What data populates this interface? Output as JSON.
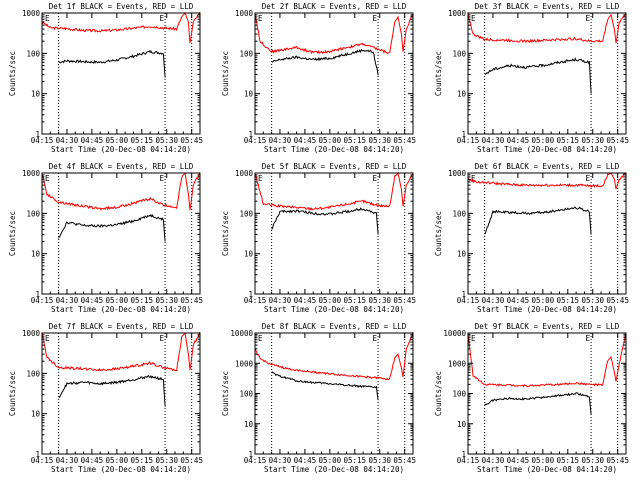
{
  "chart_data": {
    "type": "line",
    "layout": {
      "rows": 3,
      "cols": 3
    },
    "xlabel": "Start Time (20-Dec-08 04:14:20)",
    "ylabel": "Counts/sec",
    "x_ticks": [
      "04:15",
      "04:30",
      "04:45",
      "05:00",
      "05:15",
      "05:30",
      "05:45"
    ],
    "x_tick_minutes": [
      15,
      30,
      45,
      60,
      75,
      90,
      105
    ],
    "xlim_minutes": [
      15,
      110
    ],
    "y_scale": "log",
    "y_ticks": [
      "1",
      "10",
      "100",
      "1000"
    ],
    "y_ticks_wide": [
      "1",
      "10",
      "100",
      "1000",
      "10000"
    ],
    "marker_label": "E",
    "marker_lines_minutes": [
      25,
      89,
      105
    ],
    "series_colors": {
      "Events": "#000000",
      "LLD": "#ff0000"
    },
    "panels": [
      {
        "title": "Det 1f BLACK = Events, RED = LLD",
        "ylim": [
          1,
          1000
        ],
        "events": [
          [
            25,
            60
          ],
          [
            30,
            65
          ],
          [
            40,
            62
          ],
          [
            50,
            60
          ],
          [
            60,
            68
          ],
          [
            70,
            85
          ],
          [
            80,
            110
          ],
          [
            88,
            100
          ],
          [
            89,
            25
          ]
        ],
        "lld": [
          [
            15,
            600
          ],
          [
            20,
            430
          ],
          [
            30,
            410
          ],
          [
            40,
            370
          ],
          [
            50,
            360
          ],
          [
            60,
            380
          ],
          [
            70,
            420
          ],
          [
            80,
            470
          ],
          [
            88,
            430
          ],
          [
            96,
            400
          ],
          [
            99,
            800
          ],
          [
            101,
            1000
          ],
          [
            103,
            600
          ],
          [
            104,
            180
          ],
          [
            106,
            600
          ],
          [
            110,
            1000
          ]
        ]
      },
      {
        "title": "Det 2f BLACK = Events, RED = LLD",
        "ylim": [
          1,
          1000
        ],
        "events": [
          [
            25,
            60
          ],
          [
            30,
            70
          ],
          [
            40,
            80
          ],
          [
            50,
            70
          ],
          [
            60,
            75
          ],
          [
            70,
            95
          ],
          [
            80,
            120
          ],
          [
            86,
            110
          ],
          [
            89,
            30
          ]
        ],
        "lld": [
          [
            15,
            1000
          ],
          [
            18,
            200
          ],
          [
            25,
            110
          ],
          [
            40,
            140
          ],
          [
            50,
            105
          ],
          [
            60,
            110
          ],
          [
            70,
            140
          ],
          [
            80,
            170
          ],
          [
            88,
            130
          ],
          [
            96,
            100
          ],
          [
            99,
            600
          ],
          [
            101,
            800
          ],
          [
            103,
            300
          ],
          [
            104,
            110
          ],
          [
            106,
            400
          ],
          [
            110,
            1000
          ]
        ]
      },
      {
        "title": "Det 3f BLACK = Events, RED = LLD",
        "ylim": [
          1,
          1000
        ],
        "events": [
          [
            25,
            30
          ],
          [
            30,
            40
          ],
          [
            40,
            50
          ],
          [
            50,
            45
          ],
          [
            60,
            50
          ],
          [
            70,
            60
          ],
          [
            80,
            70
          ],
          [
            88,
            60
          ],
          [
            89,
            10
          ]
        ],
        "lld": [
          [
            15,
            1000
          ],
          [
            18,
            300
          ],
          [
            25,
            220
          ],
          [
            40,
            210
          ],
          [
            50,
            200
          ],
          [
            60,
            210
          ],
          [
            70,
            220
          ],
          [
            80,
            230
          ],
          [
            88,
            200
          ],
          [
            96,
            200
          ],
          [
            99,
            700
          ],
          [
            101,
            900
          ],
          [
            103,
            400
          ],
          [
            104,
            180
          ],
          [
            106,
            600
          ],
          [
            110,
            1000
          ]
        ]
      },
      {
        "title": "Det 4f BLACK = Events, RED = LLD",
        "ylim": [
          1,
          1000
        ],
        "events": [
          [
            25,
            25
          ],
          [
            30,
            60
          ],
          [
            40,
            50
          ],
          [
            50,
            48
          ],
          [
            60,
            52
          ],
          [
            70,
            65
          ],
          [
            80,
            90
          ],
          [
            88,
            70
          ],
          [
            89,
            20
          ]
        ],
        "lld": [
          [
            15,
            1000
          ],
          [
            18,
            300
          ],
          [
            25,
            190
          ],
          [
            40,
            150
          ],
          [
            50,
            130
          ],
          [
            60,
            140
          ],
          [
            70,
            180
          ],
          [
            80,
            230
          ],
          [
            88,
            160
          ],
          [
            96,
            140
          ],
          [
            99,
            800
          ],
          [
            101,
            1000
          ],
          [
            103,
            300
          ],
          [
            104,
            120
          ],
          [
            106,
            500
          ],
          [
            110,
            1000
          ]
        ]
      },
      {
        "title": "Det 5f BLACK = Events, RED = LLD",
        "ylim": [
          1,
          1000
        ],
        "events": [
          [
            25,
            40
          ],
          [
            30,
            110
          ],
          [
            40,
            115
          ],
          [
            50,
            100
          ],
          [
            60,
            95
          ],
          [
            70,
            110
          ],
          [
            80,
            130
          ],
          [
            88,
            100
          ],
          [
            89,
            30
          ]
        ],
        "lld": [
          [
            15,
            1000
          ],
          [
            20,
            170
          ],
          [
            30,
            150
          ],
          [
            40,
            140
          ],
          [
            50,
            130
          ],
          [
            60,
            140
          ],
          [
            70,
            170
          ],
          [
            80,
            200
          ],
          [
            88,
            160
          ],
          [
            96,
            150
          ],
          [
            99,
            800
          ],
          [
            101,
            1000
          ],
          [
            103,
            400
          ],
          [
            104,
            150
          ],
          [
            106,
            500
          ],
          [
            110,
            1000
          ]
        ]
      },
      {
        "title": "Det 6f BLACK = Events, RED = LLD",
        "ylim": [
          1,
          1000
        ],
        "events": [
          [
            25,
            30
          ],
          [
            30,
            110
          ],
          [
            40,
            105
          ],
          [
            50,
            100
          ],
          [
            60,
            105
          ],
          [
            70,
            120
          ],
          [
            80,
            140
          ],
          [
            88,
            110
          ],
          [
            89,
            30
          ]
        ],
        "lld": [
          [
            15,
            700
          ],
          [
            20,
            600
          ],
          [
            30,
            560
          ],
          [
            40,
            520
          ],
          [
            50,
            500
          ],
          [
            60,
            500
          ],
          [
            70,
            500
          ],
          [
            80,
            500
          ],
          [
            88,
            480
          ],
          [
            96,
            480
          ],
          [
            99,
            900
          ],
          [
            101,
            1000
          ],
          [
            103,
            700
          ],
          [
            104,
            400
          ],
          [
            106,
            700
          ],
          [
            110,
            1000
          ]
        ]
      },
      {
        "title": "Det 7f BLACK = Events, RED = LLD",
        "ylim": [
          1,
          1000
        ],
        "events": [
          [
            25,
            25
          ],
          [
            30,
            55
          ],
          [
            40,
            60
          ],
          [
            50,
            55
          ],
          [
            60,
            60
          ],
          [
            70,
            70
          ],
          [
            80,
            85
          ],
          [
            88,
            70
          ],
          [
            89,
            15
          ]
        ],
        "lld": [
          [
            15,
            1000
          ],
          [
            18,
            250
          ],
          [
            25,
            140
          ],
          [
            40,
            130
          ],
          [
            50,
            120
          ],
          [
            60,
            130
          ],
          [
            70,
            150
          ],
          [
            80,
            180
          ],
          [
            88,
            140
          ],
          [
            96,
            120
          ],
          [
            99,
            800
          ],
          [
            101,
            1000
          ],
          [
            103,
            300
          ],
          [
            104,
            120
          ],
          [
            106,
            500
          ],
          [
            110,
            1000
          ]
        ]
      },
      {
        "title": "Det 8f BLACK = Events, RED = LLD",
        "ylim": [
          1,
          10000
        ],
        "events": [
          [
            25,
            500
          ],
          [
            28,
            400
          ],
          [
            35,
            320
          ],
          [
            40,
            260
          ],
          [
            50,
            230
          ],
          [
            60,
            210
          ],
          [
            70,
            190
          ],
          [
            80,
            170
          ],
          [
            88,
            160
          ],
          [
            89,
            60
          ]
        ],
        "lld": [
          [
            15,
            3000
          ],
          [
            18,
            1400
          ],
          [
            25,
            900
          ],
          [
            35,
            650
          ],
          [
            45,
            550
          ],
          [
            55,
            480
          ],
          [
            65,
            420
          ],
          [
            75,
            380
          ],
          [
            88,
            330
          ],
          [
            96,
            300
          ],
          [
            99,
            1500
          ],
          [
            101,
            2000
          ],
          [
            103,
            700
          ],
          [
            104,
            350
          ],
          [
            106,
            3000
          ],
          [
            110,
            10000
          ]
        ]
      },
      {
        "title": "Det 9f BLACK = Events, RED = LLD",
        "ylim": [
          1,
          10000
        ],
        "events": [
          [
            25,
            40
          ],
          [
            30,
            60
          ],
          [
            40,
            70
          ],
          [
            50,
            65
          ],
          [
            60,
            75
          ],
          [
            70,
            85
          ],
          [
            80,
            100
          ],
          [
            88,
            80
          ],
          [
            89,
            20
          ]
        ],
        "lld": [
          [
            15,
            10000
          ],
          [
            18,
            400
          ],
          [
            25,
            200
          ],
          [
            40,
            190
          ],
          [
            50,
            180
          ],
          [
            60,
            190
          ],
          [
            70,
            200
          ],
          [
            80,
            220
          ],
          [
            88,
            200
          ],
          [
            96,
            190
          ],
          [
            99,
            1200
          ],
          [
            101,
            1600
          ],
          [
            103,
            500
          ],
          [
            104,
            250
          ],
          [
            106,
            1000
          ],
          [
            110,
            10000
          ]
        ]
      }
    ]
  }
}
